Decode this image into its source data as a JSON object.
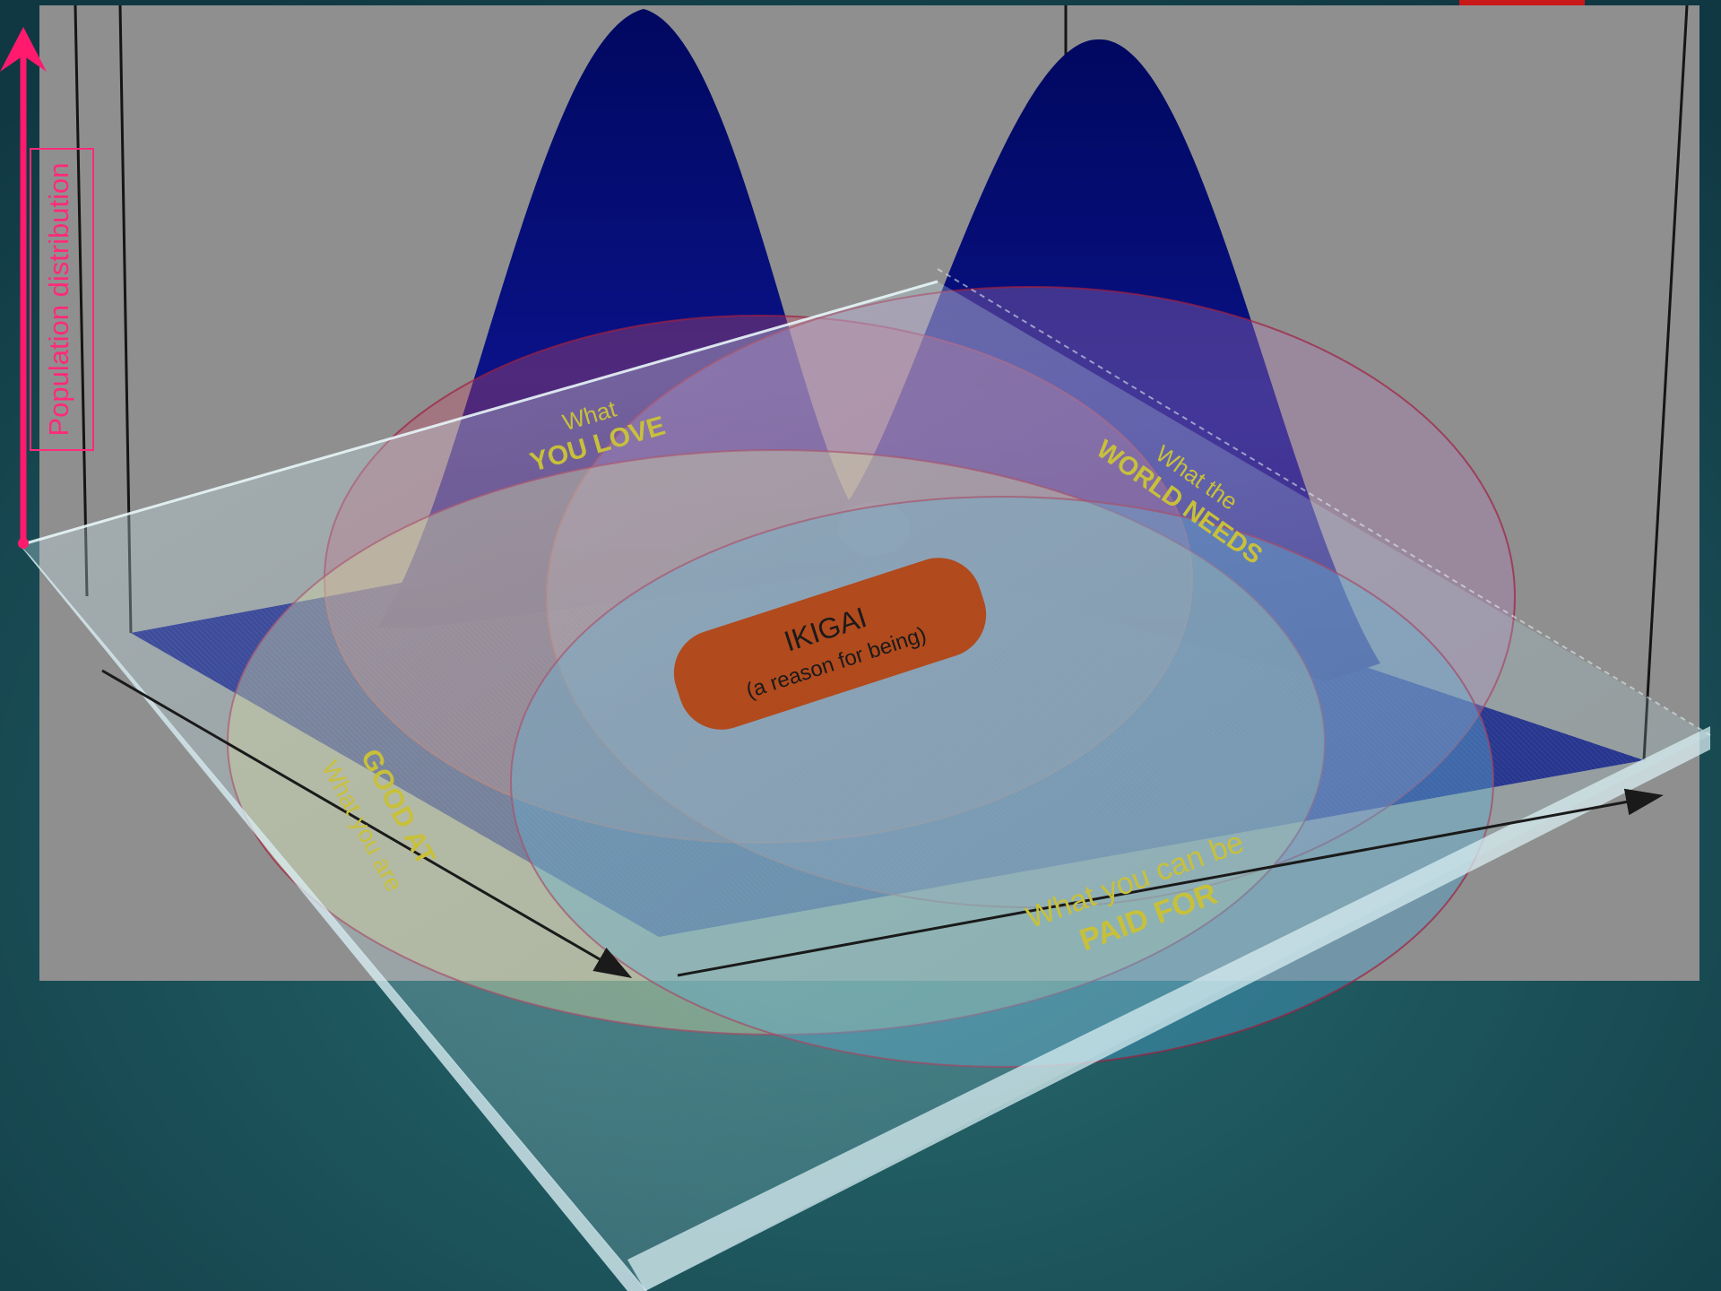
{
  "axis": {
    "vertical_label": "Population distribution"
  },
  "circles": {
    "love": {
      "line1": "What",
      "line2": "YOU LOVE"
    },
    "world": {
      "line1": "What the",
      "line2": "WORLD NEEDS"
    },
    "good": {
      "line1": "What you are",
      "line2": "GOOD AT"
    },
    "paid": {
      "line1": "What you can be",
      "line2": "PAID FOR"
    }
  },
  "center": {
    "title": "IKIGAI",
    "subtitle": "(a reason for being)"
  },
  "colors": {
    "background": "#1a4f58",
    "panel": "#8c8c8c",
    "surface": "#000080",
    "axis_arrow": "#ff1a6e",
    "label_yellow": "#c8c03a",
    "ikigai_badge": "#b5400c",
    "circle_love": "#c0506a",
    "circle_world": "#b07ab8",
    "circle_good": "#d8d48a",
    "circle_paid": "#4aa0c8"
  },
  "surface_peaks": [
    {
      "name": "left-peak"
    },
    {
      "name": "right-peak"
    }
  ]
}
